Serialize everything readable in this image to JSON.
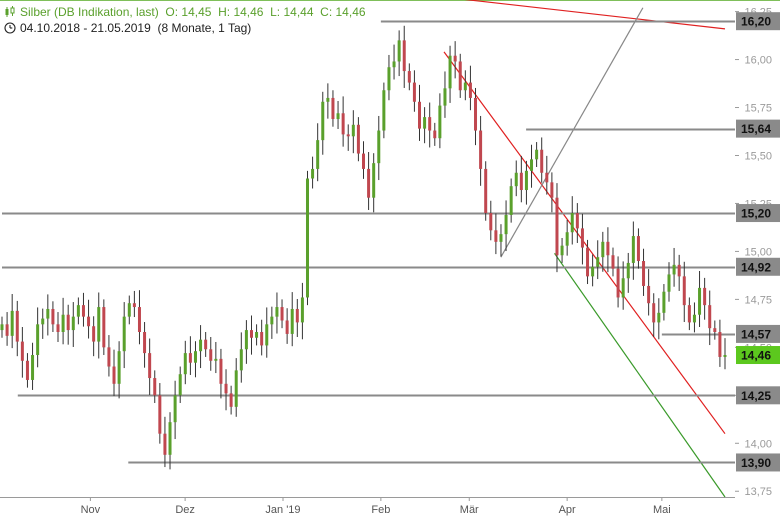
{
  "header": {
    "title": "Silber (DB Indikation, last)",
    "ohlc": "O: 14,45  H: 14,46  L: 14,44  C: 14,46",
    "period_range": "04.10.2018 - 21.05.2019",
    "period_desc": "(8 Monate, 1 Tag)",
    "title_icon": "candlestick-icon",
    "period_icon": "clock-icon"
  },
  "chart_data": {
    "type": "candlestick",
    "ylim": [
      13.72,
      16.3
    ],
    "y_ticks": [
      13.75,
      14.0,
      14.25,
      14.5,
      14.75,
      15.0,
      15.25,
      15.5,
      15.75,
      16.0,
      16.25
    ],
    "y_tick_labels": [
      "13,75",
      "14,00",
      "14,25",
      "14,50",
      "14,75",
      "15,00",
      "15,25",
      "15,50",
      "15,75",
      "16,00",
      "16,25"
    ],
    "x_range": [
      "2018-10-04",
      "2019-05-21"
    ],
    "x_ticks": [
      {
        "date": "2018-11-01",
        "label": "Nov"
      },
      {
        "date": "2018-12-01",
        "label": "Dez"
      },
      {
        "date": "2019-01-01",
        "label": "Jan '19"
      },
      {
        "date": "2019-02-01",
        "label": "Feb"
      },
      {
        "date": "2019-03-01",
        "label": "Mär"
      },
      {
        "date": "2019-04-01",
        "label": "Apr"
      },
      {
        "date": "2019-05-01",
        "label": "Mai"
      }
    ],
    "horizontal_levels": [
      {
        "value": 16.2,
        "label": "16,20",
        "start": "2019-02-01"
      },
      {
        "value": 15.64,
        "label": "15,64",
        "start": "2019-03-19"
      },
      {
        "value": 15.2,
        "label": "15,20",
        "start": "2018-10-04"
      },
      {
        "value": 14.92,
        "label": "14,92",
        "start": "2018-10-04"
      },
      {
        "value": 14.57,
        "label": "14,57",
        "start": "2019-05-01"
      },
      {
        "value": 14.25,
        "label": "14,25",
        "start": "2018-10-09"
      },
      {
        "value": 13.9,
        "label": "13,90",
        "start": "2018-11-13"
      }
    ],
    "last_price": {
      "value": 14.46,
      "label": "14,46"
    },
    "trendlines": [
      {
        "name": "resistance-red-long",
        "color": "#e02020",
        "points": [
          [
            "2019-02-24",
            16.32
          ],
          [
            "2019-05-21",
            16.16
          ]
        ]
      },
      {
        "name": "resistance-red-channel",
        "color": "#e02020",
        "points": [
          [
            "2019-02-21",
            16.04
          ],
          [
            "2019-05-21",
            14.05
          ]
        ]
      },
      {
        "name": "support-green-channel",
        "color": "#3a9a2a",
        "points": [
          [
            "2019-03-28",
            14.99
          ],
          [
            "2019-05-21",
            13.72
          ]
        ]
      },
      {
        "name": "support-grey-rising",
        "color": "#888888",
        "points": [
          [
            "2019-03-11",
            14.97
          ],
          [
            "2019-04-25",
            16.27
          ]
        ]
      }
    ],
    "ohlc_daily_approx": {
      "base_date": "2018-10-04",
      "up_color": "#5aa02c",
      "down_color": "#c0474f",
      "closes": [
        14.62,
        14.56,
        14.69,
        14.53,
        14.43,
        14.33,
        14.46,
        14.62,
        14.65,
        14.7,
        14.62,
        14.58,
        14.67,
        14.59,
        14.66,
        14.72,
        14.66,
        14.61,
        14.53,
        14.71,
        14.5,
        14.4,
        14.31,
        14.48,
        14.66,
        14.73,
        14.71,
        14.58,
        14.47,
        14.34,
        14.25,
        14.05,
        13.94,
        14.11,
        14.25,
        14.36,
        14.47,
        14.42,
        14.48,
        14.54,
        14.49,
        14.43,
        14.44,
        14.31,
        14.26,
        14.19,
        14.38,
        14.49,
        14.59,
        14.55,
        14.58,
        14.51,
        14.62,
        14.66,
        14.71,
        14.64,
        14.57,
        14.7,
        14.63,
        14.76,
        15.38,
        15.43,
        15.58,
        15.78,
        15.8,
        15.69,
        15.72,
        15.61,
        15.6,
        15.66,
        15.51,
        15.43,
        15.28,
        15.46,
        15.63,
        15.84,
        15.96,
        15.99,
        16.1,
        15.94,
        15.88,
        15.78,
        15.64,
        15.7,
        15.63,
        15.59,
        15.76,
        15.85,
        16.02,
        15.99,
        15.84,
        15.88,
        15.8,
        15.63,
        15.43,
        15.2,
        15.11,
        15.05,
        15.09,
        15.19,
        15.34,
        15.41,
        15.32,
        15.42,
        15.48,
        15.53,
        15.41,
        15.36,
        15.28,
        14.98,
        15.03,
        15.1,
        15.2,
        15.12,
        15.02,
        14.87,
        14.92,
        14.97,
        15.05,
        14.98,
        14.91,
        14.76,
        14.86,
        14.94,
        15.08,
        14.95,
        14.82,
        14.73,
        14.63,
        14.68,
        14.79,
        14.88,
        14.93,
        14.87,
        14.72,
        14.63,
        14.67,
        14.81,
        14.72,
        14.6,
        14.58,
        14.45,
        14.46
      ]
    }
  }
}
